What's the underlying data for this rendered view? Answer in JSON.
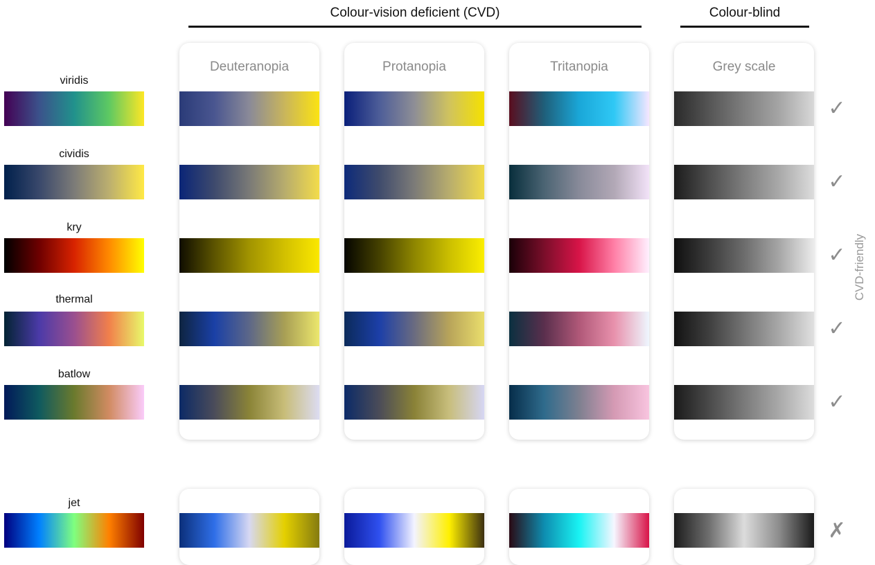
{
  "headers": {
    "cvd": "Colour-vision deficient (CVD)",
    "blind": "Colour-blind"
  },
  "columns": [
    "Deuteranopia",
    "Protanopia",
    "Tritanopia",
    "Grey scale"
  ],
  "side_label": "CVD-friendly",
  "rows": [
    {
      "name": "viridis",
      "verdict": "✓",
      "gradients": [
        [
          "#440154",
          "#3b528b",
          "#21918c",
          "#5ec962",
          "#fde725"
        ],
        [
          "#2a3b78",
          "#4a5690",
          "#8a8a98",
          "#c9b55c",
          "#fbe312"
        ],
        [
          "#0a1f7a",
          "#4d5d98",
          "#8e8e96",
          "#d0c35e",
          "#f5e100"
        ],
        [
          "#5a0d1e",
          "#1f5f7a",
          "#1aa7d8",
          "#2fc8f5",
          "#f6e6ff"
        ],
        [
          "#2a2a2a",
          "#555555",
          "#7e7e7e",
          "#a5a5a5",
          "#d8d8d8"
        ]
      ]
    },
    {
      "name": "cividis",
      "verdict": "✓",
      "gradients": [
        [
          "#00204c",
          "#39486b",
          "#7c7b78",
          "#bcaf6f",
          "#ffe945"
        ],
        [
          "#0a2577",
          "#3e4a6d",
          "#7a7a77",
          "#b7ac6d",
          "#f3dc4a"
        ],
        [
          "#0d2a7a",
          "#3f4b6c",
          "#7c7b78",
          "#b8ad6d",
          "#f1db4a"
        ],
        [
          "#082e3c",
          "#4b6473",
          "#888a99",
          "#b2a8b6",
          "#f2e2f8"
        ],
        [
          "#1c1c1c",
          "#4e4e4e",
          "#7d7d7d",
          "#a9a9a9",
          "#dcdcdc"
        ]
      ]
    },
    {
      "name": "kry",
      "verdict": "✓",
      "gradients": [
        [
          "#000000",
          "#6e0000",
          "#d82300",
          "#ff8a00",
          "#ffff00"
        ],
        [
          "#0f0d00",
          "#5c5400",
          "#a29400",
          "#d2c000",
          "#fbe800"
        ],
        [
          "#050500",
          "#454100",
          "#8e8600",
          "#cbbf00",
          "#fbee00"
        ],
        [
          "#1a0008",
          "#7a0e2a",
          "#d81448",
          "#ff7fa6",
          "#fff0ff"
        ],
        [
          "#0f0f0f",
          "#3c3c3c",
          "#6c6c6c",
          "#a6a6a6",
          "#ebebeb"
        ]
      ]
    },
    {
      "name": "thermal",
      "verdict": "✓",
      "gradients": [
        [
          "#032333",
          "#4b3aa8",
          "#9a4f8f",
          "#f1804b",
          "#e8f96a"
        ],
        [
          "#0e2440",
          "#1a40a6",
          "#5d6788",
          "#a89f55",
          "#ece76d"
        ],
        [
          "#0b2a5a",
          "#1c3fa8",
          "#6a6b80",
          "#b8a45a",
          "#eade6c"
        ],
        [
          "#0a3040",
          "#5a2f4d",
          "#b05878",
          "#e891ac",
          "#eef7ff"
        ],
        [
          "#121212",
          "#3f3f3f",
          "#747474",
          "#a8a8a8",
          "#e0e0e0"
        ]
      ]
    },
    {
      "name": "batlow",
      "verdict": "✓",
      "gradients": [
        [
          "#011959",
          "#0f5a5f",
          "#6b7a2d",
          "#d18b62",
          "#faccfa"
        ],
        [
          "#0c2a66",
          "#4b4c5a",
          "#8b8437",
          "#c8bd79",
          "#dcdcf2"
        ],
        [
          "#0b2a68",
          "#4b4c58",
          "#8a8237",
          "#c8be7d",
          "#d6d6f4"
        ],
        [
          "#062d4a",
          "#2f6b8c",
          "#7e8090",
          "#d59ab4",
          "#f8c4df"
        ],
        [
          "#1a1a1a",
          "#4a4a4a",
          "#7a7a7a",
          "#a9a9a9",
          "#dcdcdc"
        ]
      ]
    },
    {
      "name": "jet",
      "verdict": "✗",
      "gradients": [
        [
          "#00007f",
          "#0080ff",
          "#7fff7f",
          "#ff8000",
          "#7f0000"
        ],
        [
          "#0b2f7a",
          "#2f6fe8",
          "#d7d8f2",
          "#e4d000",
          "#857b10"
        ],
        [
          "#0a1a9a",
          "#2f50ef",
          "#f3f3ff",
          "#fff000",
          "#3b2f10"
        ],
        [
          "#2a0a14",
          "#0e8db0",
          "#19f3f3",
          "#f6f6ff",
          "#d81448"
        ],
        [
          "#1c1c1c",
          "#6f6f6f",
          "#dcdcdc",
          "#8c8c8c",
          "#1a1a1a"
        ]
      ]
    }
  ]
}
